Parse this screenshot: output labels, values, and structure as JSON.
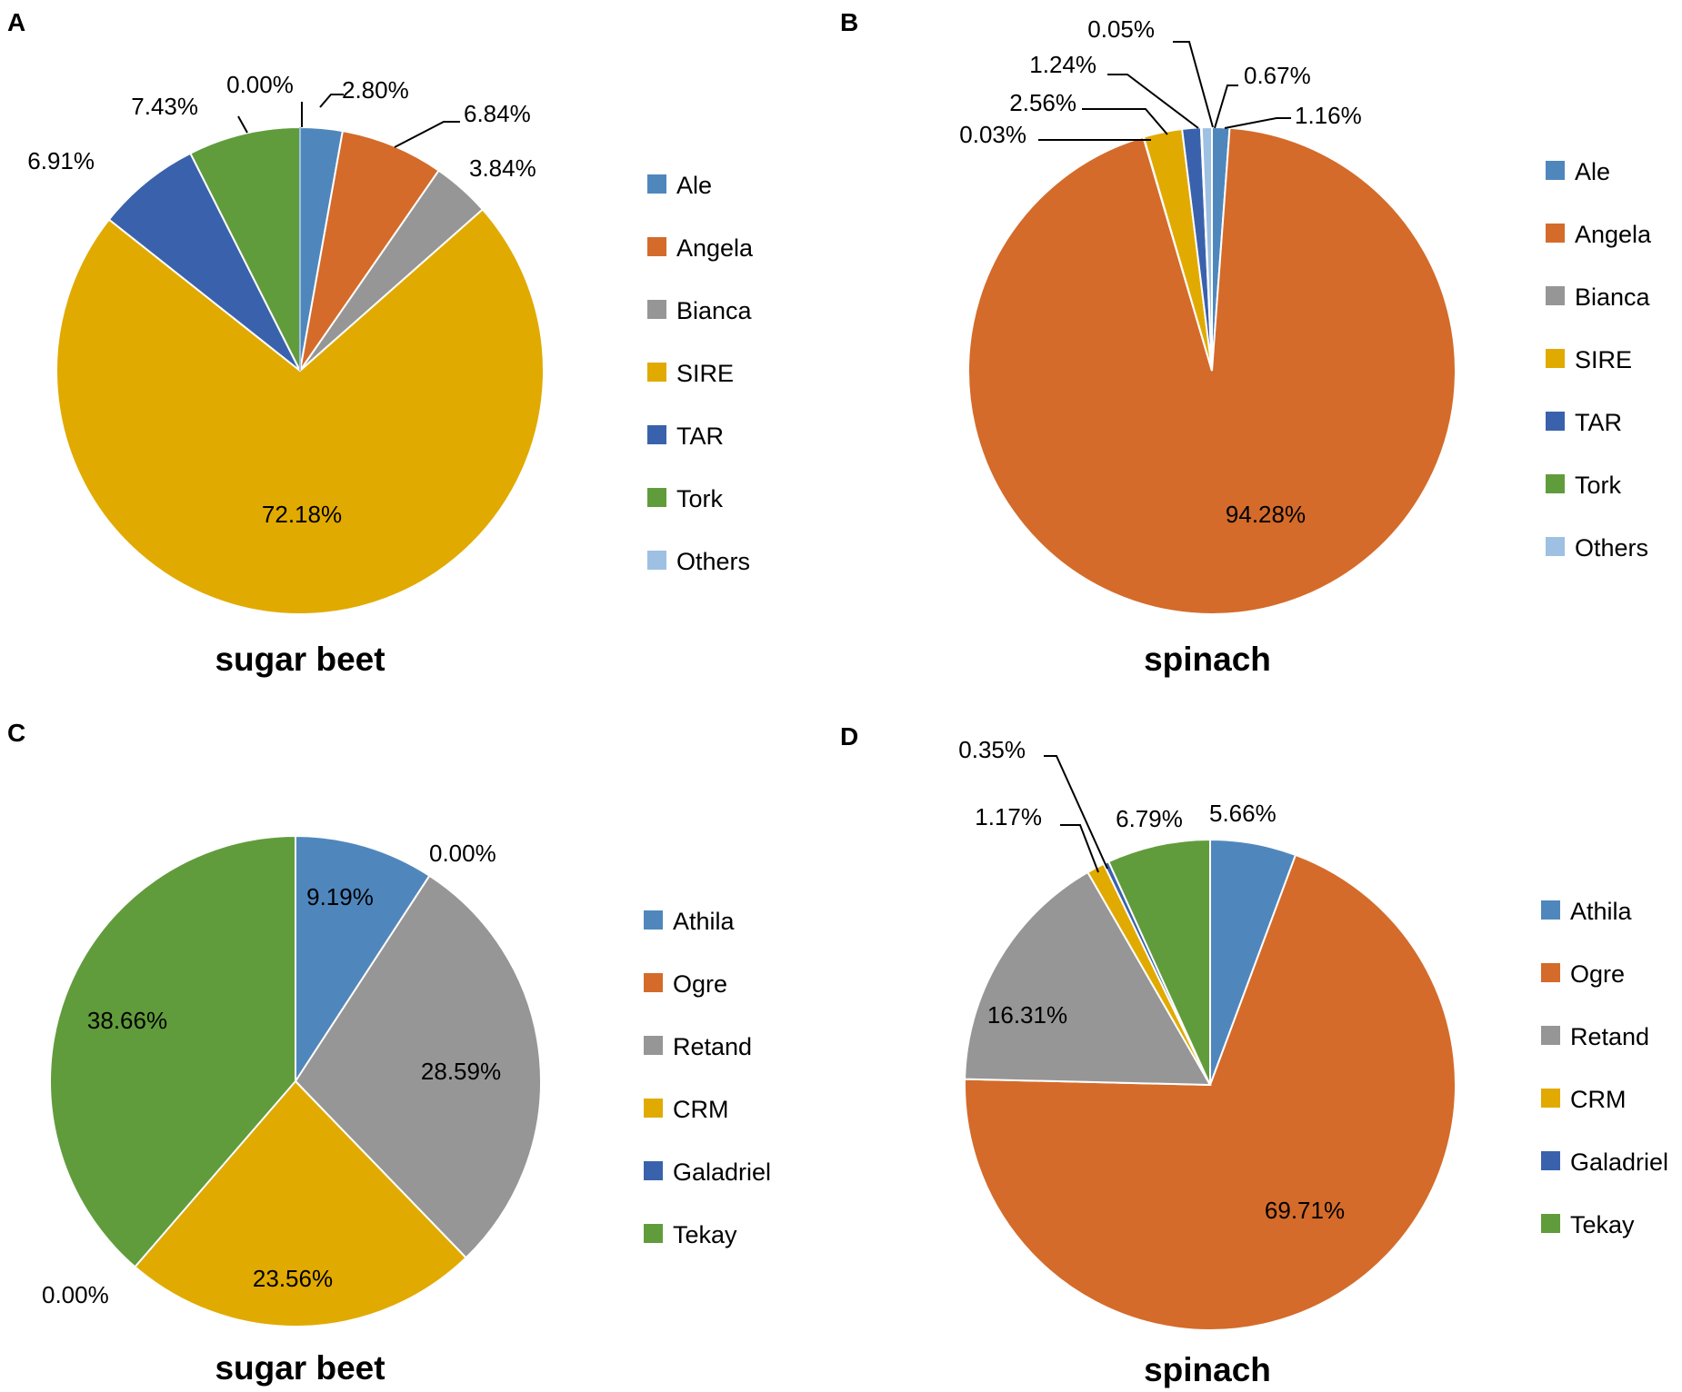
{
  "chart_data": [
    {
      "panel": "A",
      "type": "pie",
      "title": "sugar beet",
      "categories": [
        "Ale",
        "Angela",
        "Bianca",
        "SIRE",
        "TAR",
        "Tork",
        "Others"
      ],
      "values": [
        2.8,
        6.84,
        3.84,
        72.18,
        6.91,
        7.43,
        0.0
      ],
      "labels": [
        "2.80%",
        "6.84%",
        "3.84%",
        "72.18%",
        "6.91%",
        "7.43%",
        "0.00%"
      ],
      "colors": [
        "#4f87bd",
        "#d46b2a",
        "#969696",
        "#e1aa00",
        "#3a62ac",
        "#619c3c",
        "#9ec0e3"
      ],
      "legend_position": "right"
    },
    {
      "panel": "B",
      "type": "pie",
      "title": "spinach",
      "categories": [
        "Ale",
        "Angela",
        "Bianca",
        "SIRE",
        "TAR",
        "Tork",
        "Others"
      ],
      "values": [
        1.16,
        94.28,
        0.03,
        2.56,
        1.24,
        0.05,
        0.67
      ],
      "labels": [
        "1.16%",
        "94.28%",
        "0.03%",
        "2.56%",
        "1.24%",
        "0.05%",
        "0.67%"
      ],
      "colors": [
        "#4f87bd",
        "#d46b2a",
        "#969696",
        "#e1aa00",
        "#3a62ac",
        "#619c3c",
        "#9ec0e3"
      ],
      "legend_position": "right"
    },
    {
      "panel": "C",
      "type": "pie",
      "title": "sugar beet",
      "categories": [
        "Athila",
        "Ogre",
        "Retand",
        "CRM",
        "Galadriel",
        "Tekay"
      ],
      "values": [
        9.19,
        0.0,
        28.59,
        23.56,
        0.0,
        38.66
      ],
      "labels": [
        "9.19%",
        "0.00%",
        "28.59%",
        "23.56%",
        "0.00%",
        "38.66%"
      ],
      "colors": [
        "#4f87bd",
        "#d46b2a",
        "#969696",
        "#e1aa00",
        "#3a62ac",
        "#619c3c"
      ],
      "legend_position": "right"
    },
    {
      "panel": "D",
      "type": "pie",
      "title": "spinach",
      "categories": [
        "Athila",
        "Ogre",
        "Retand",
        "CRM",
        "Galadriel",
        "Tekay"
      ],
      "values": [
        5.66,
        69.71,
        16.31,
        1.17,
        0.35,
        6.79
      ],
      "labels": [
        "5.66%",
        "69.71%",
        "16.31%",
        "1.17%",
        "0.35%",
        "6.79%"
      ],
      "colors": [
        "#4f87bd",
        "#d46b2a",
        "#969696",
        "#e1aa00",
        "#3a62ac",
        "#619c3c"
      ],
      "legend_position": "right"
    }
  ]
}
